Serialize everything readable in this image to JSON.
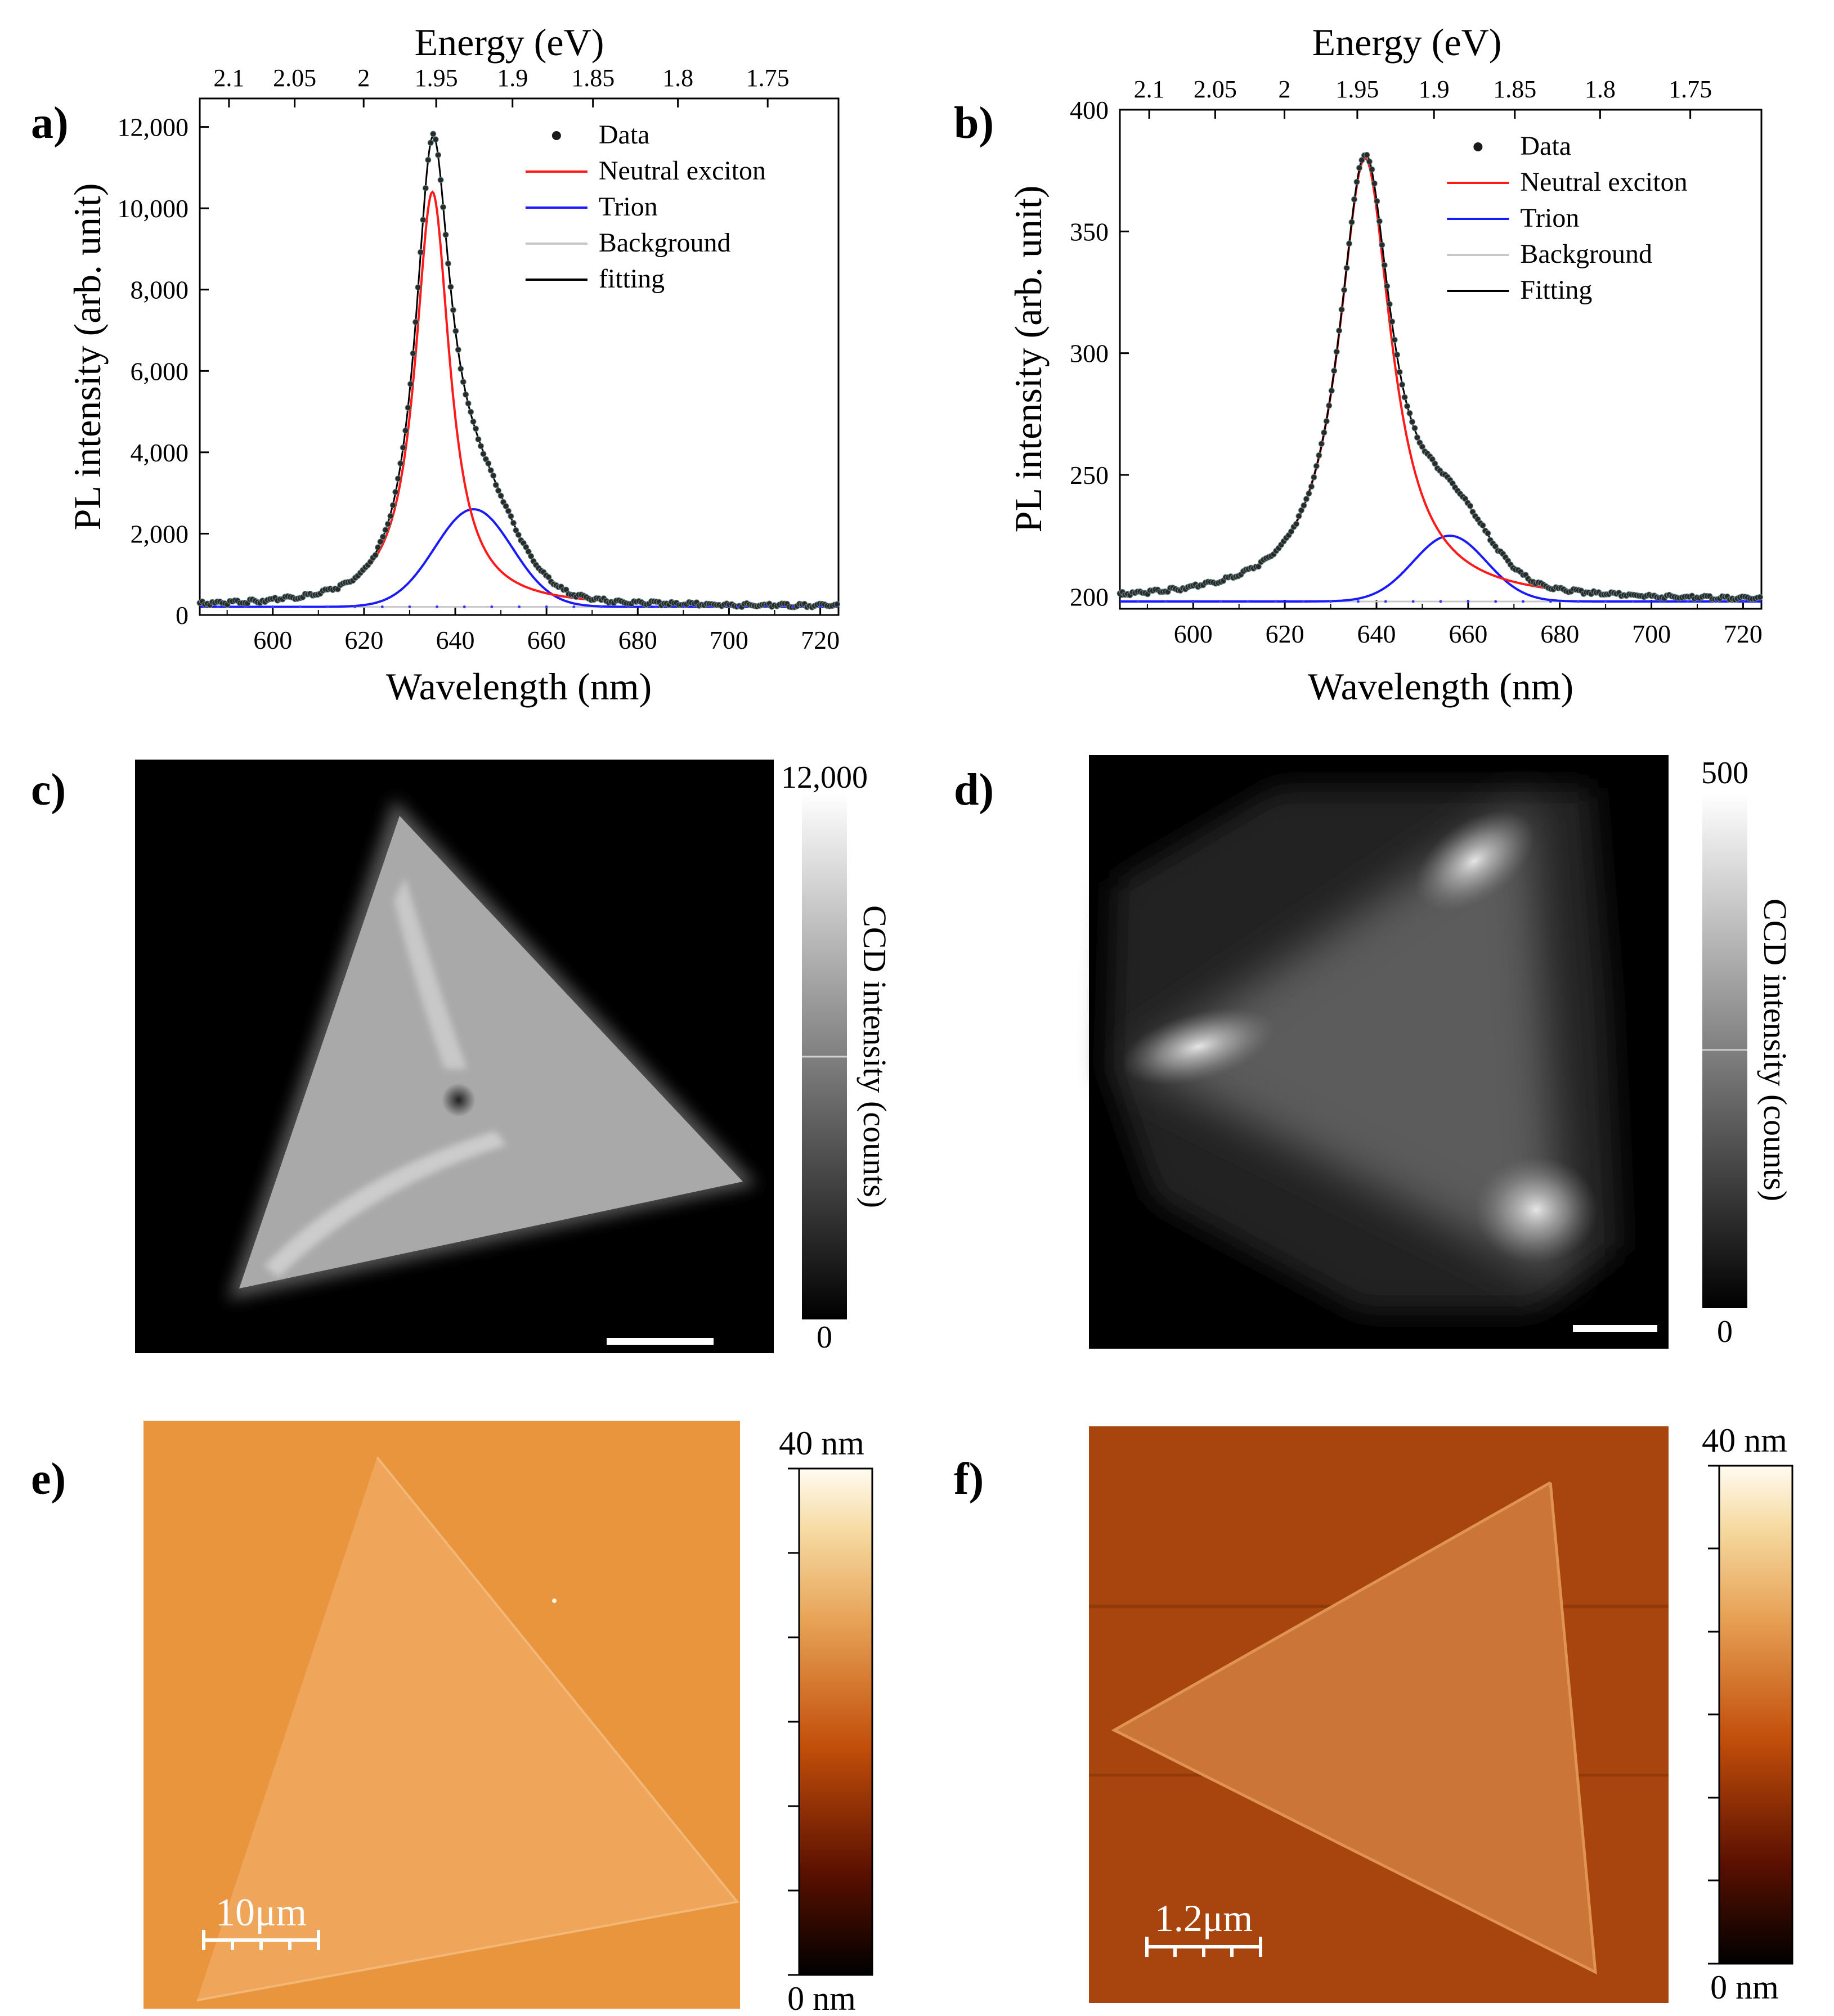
{
  "panel_labels": [
    "a)",
    "b)",
    "c)",
    "d)",
    "e)",
    "f)"
  ],
  "chart_data": [
    {
      "type": "line",
      "panel": "a)",
      "xlabel": "Wavelength (nm)",
      "ylabel": "PL intensity (arb. unit)",
      "top_axis_label": "Energy (eV)",
      "xlim": [
        584,
        724
      ],
      "ylim": [
        0,
        12700
      ],
      "x_ticks": [
        600,
        620,
        640,
        660,
        680,
        700,
        720
      ],
      "y_ticks": [
        0,
        2000,
        4000,
        6000,
        8000,
        10000,
        12000
      ],
      "y_tick_labels": [
        "0",
        "2,000",
        "4,000",
        "6,000",
        "8,000",
        "10,000",
        "12,000"
      ],
      "top_ticks": [
        "2.1",
        "2.05",
        "2",
        "1.95",
        "1.9",
        "1.85",
        "1.8",
        "1.75"
      ],
      "background_level": 200,
      "neutral_exciton": {
        "center_nm": 635,
        "amplitude": 10200,
        "hwhm_nm": 4.6
      },
      "trion": {
        "center_nm": 644,
        "amplitude": 2400,
        "sigma_nm": 8.5
      },
      "legend": [
        {
          "label": "Data",
          "style": "dots",
          "color": "#1a1a1a"
        },
        {
          "label": "Neutral exciton",
          "style": "line",
          "color": "#ff1a1a"
        },
        {
          "label": "Trion",
          "style": "line",
          "color": "#1a1aff"
        },
        {
          "label": "Background",
          "style": "line",
          "color": "#c8c8c8"
        },
        {
          "label": "fitting",
          "style": "line",
          "color": "#000000"
        }
      ]
    },
    {
      "type": "line",
      "panel": "b)",
      "xlabel": "Wavelength (nm)",
      "ylabel": "PL intensity (arb. unit)",
      "top_axis_label": "Energy (eV)",
      "xlim": [
        584,
        724
      ],
      "ylim": [
        195,
        400
      ],
      "x_ticks": [
        600,
        620,
        640,
        660,
        680,
        700,
        720
      ],
      "y_ticks": [
        200,
        250,
        300,
        350,
        400
      ],
      "y_tick_labels": [
        "200",
        "250",
        "300",
        "350",
        "400"
      ],
      "top_ticks": [
        "2.1",
        "2.05",
        "2",
        "1.95",
        "1.9",
        "1.85",
        "1.8",
        "1.75"
      ],
      "background_level": 198,
      "neutral_exciton": {
        "center_nm": 637.5,
        "amplitude": 182,
        "hwhm_nm": 7
      },
      "trion": {
        "center_nm": 656,
        "amplitude": 27,
        "sigma_nm": 8
      },
      "legend": [
        {
          "label": "Data",
          "style": "dots",
          "color": "#1a1a1a"
        },
        {
          "label": "Neutral exciton",
          "style": "line",
          "color": "#ff1a1a"
        },
        {
          "label": "Trion",
          "style": "line",
          "color": "#1a1aff"
        },
        {
          "label": "Background",
          "style": "line",
          "color": "#c8c8c8"
        },
        {
          "label": "Fitting",
          "style": "line",
          "color": "#000000"
        }
      ]
    }
  ],
  "pl_maps": {
    "c": {
      "colorbar_max": "12,000",
      "colorbar_min": "0",
      "colorbar_label": "CCD intensity  (counts)"
    },
    "d": {
      "colorbar_max": "500",
      "colorbar_min": "0",
      "colorbar_label": "CCD intensity  (counts)"
    }
  },
  "afm_maps": {
    "e": {
      "colorbar_max": "40 nm",
      "colorbar_min": "0 nm",
      "scale_bar": "10μm"
    },
    "f": {
      "colorbar_max": "40 nm",
      "colorbar_min": "0 nm",
      "scale_bar": "1.2μm"
    }
  },
  "colors": {
    "neutral_exciton": "#ff1a1a",
    "trion": "#1a1aff",
    "background": "#c8c8c8",
    "fitting": "#000000",
    "data": "#1a1a1a"
  }
}
